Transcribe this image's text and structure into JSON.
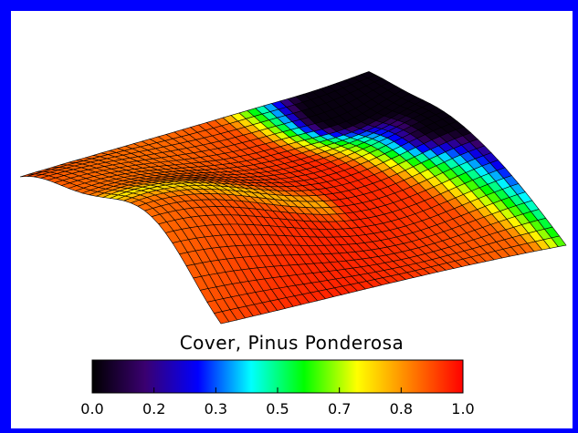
{
  "chart_data": {
    "type": "heatmap",
    "rendering": "3d-surface",
    "title": "",
    "colorbar": {
      "label": "Cover, Pinus Ponderosa",
      "range": [
        0.0,
        1.0
      ],
      "ticks": [
        "0.0",
        "0.2",
        "0.3",
        "0.5",
        "0.7",
        "0.8",
        "1.0"
      ],
      "colormap": [
        "#000000",
        "#3a0070",
        "#0000ff",
        "#00ffff",
        "#00ff00",
        "#ffff00",
        "#ff8000",
        "#ff0000"
      ]
    },
    "surface": {
      "grid_size": [
        44,
        30
      ],
      "description_values": {
        "low_cover_corner": 0.15,
        "high_cover_plateau": 0.9
      }
    }
  },
  "colors": {
    "border": "#0000ff",
    "background": "#ffffff",
    "mesh_line": "#000000"
  }
}
